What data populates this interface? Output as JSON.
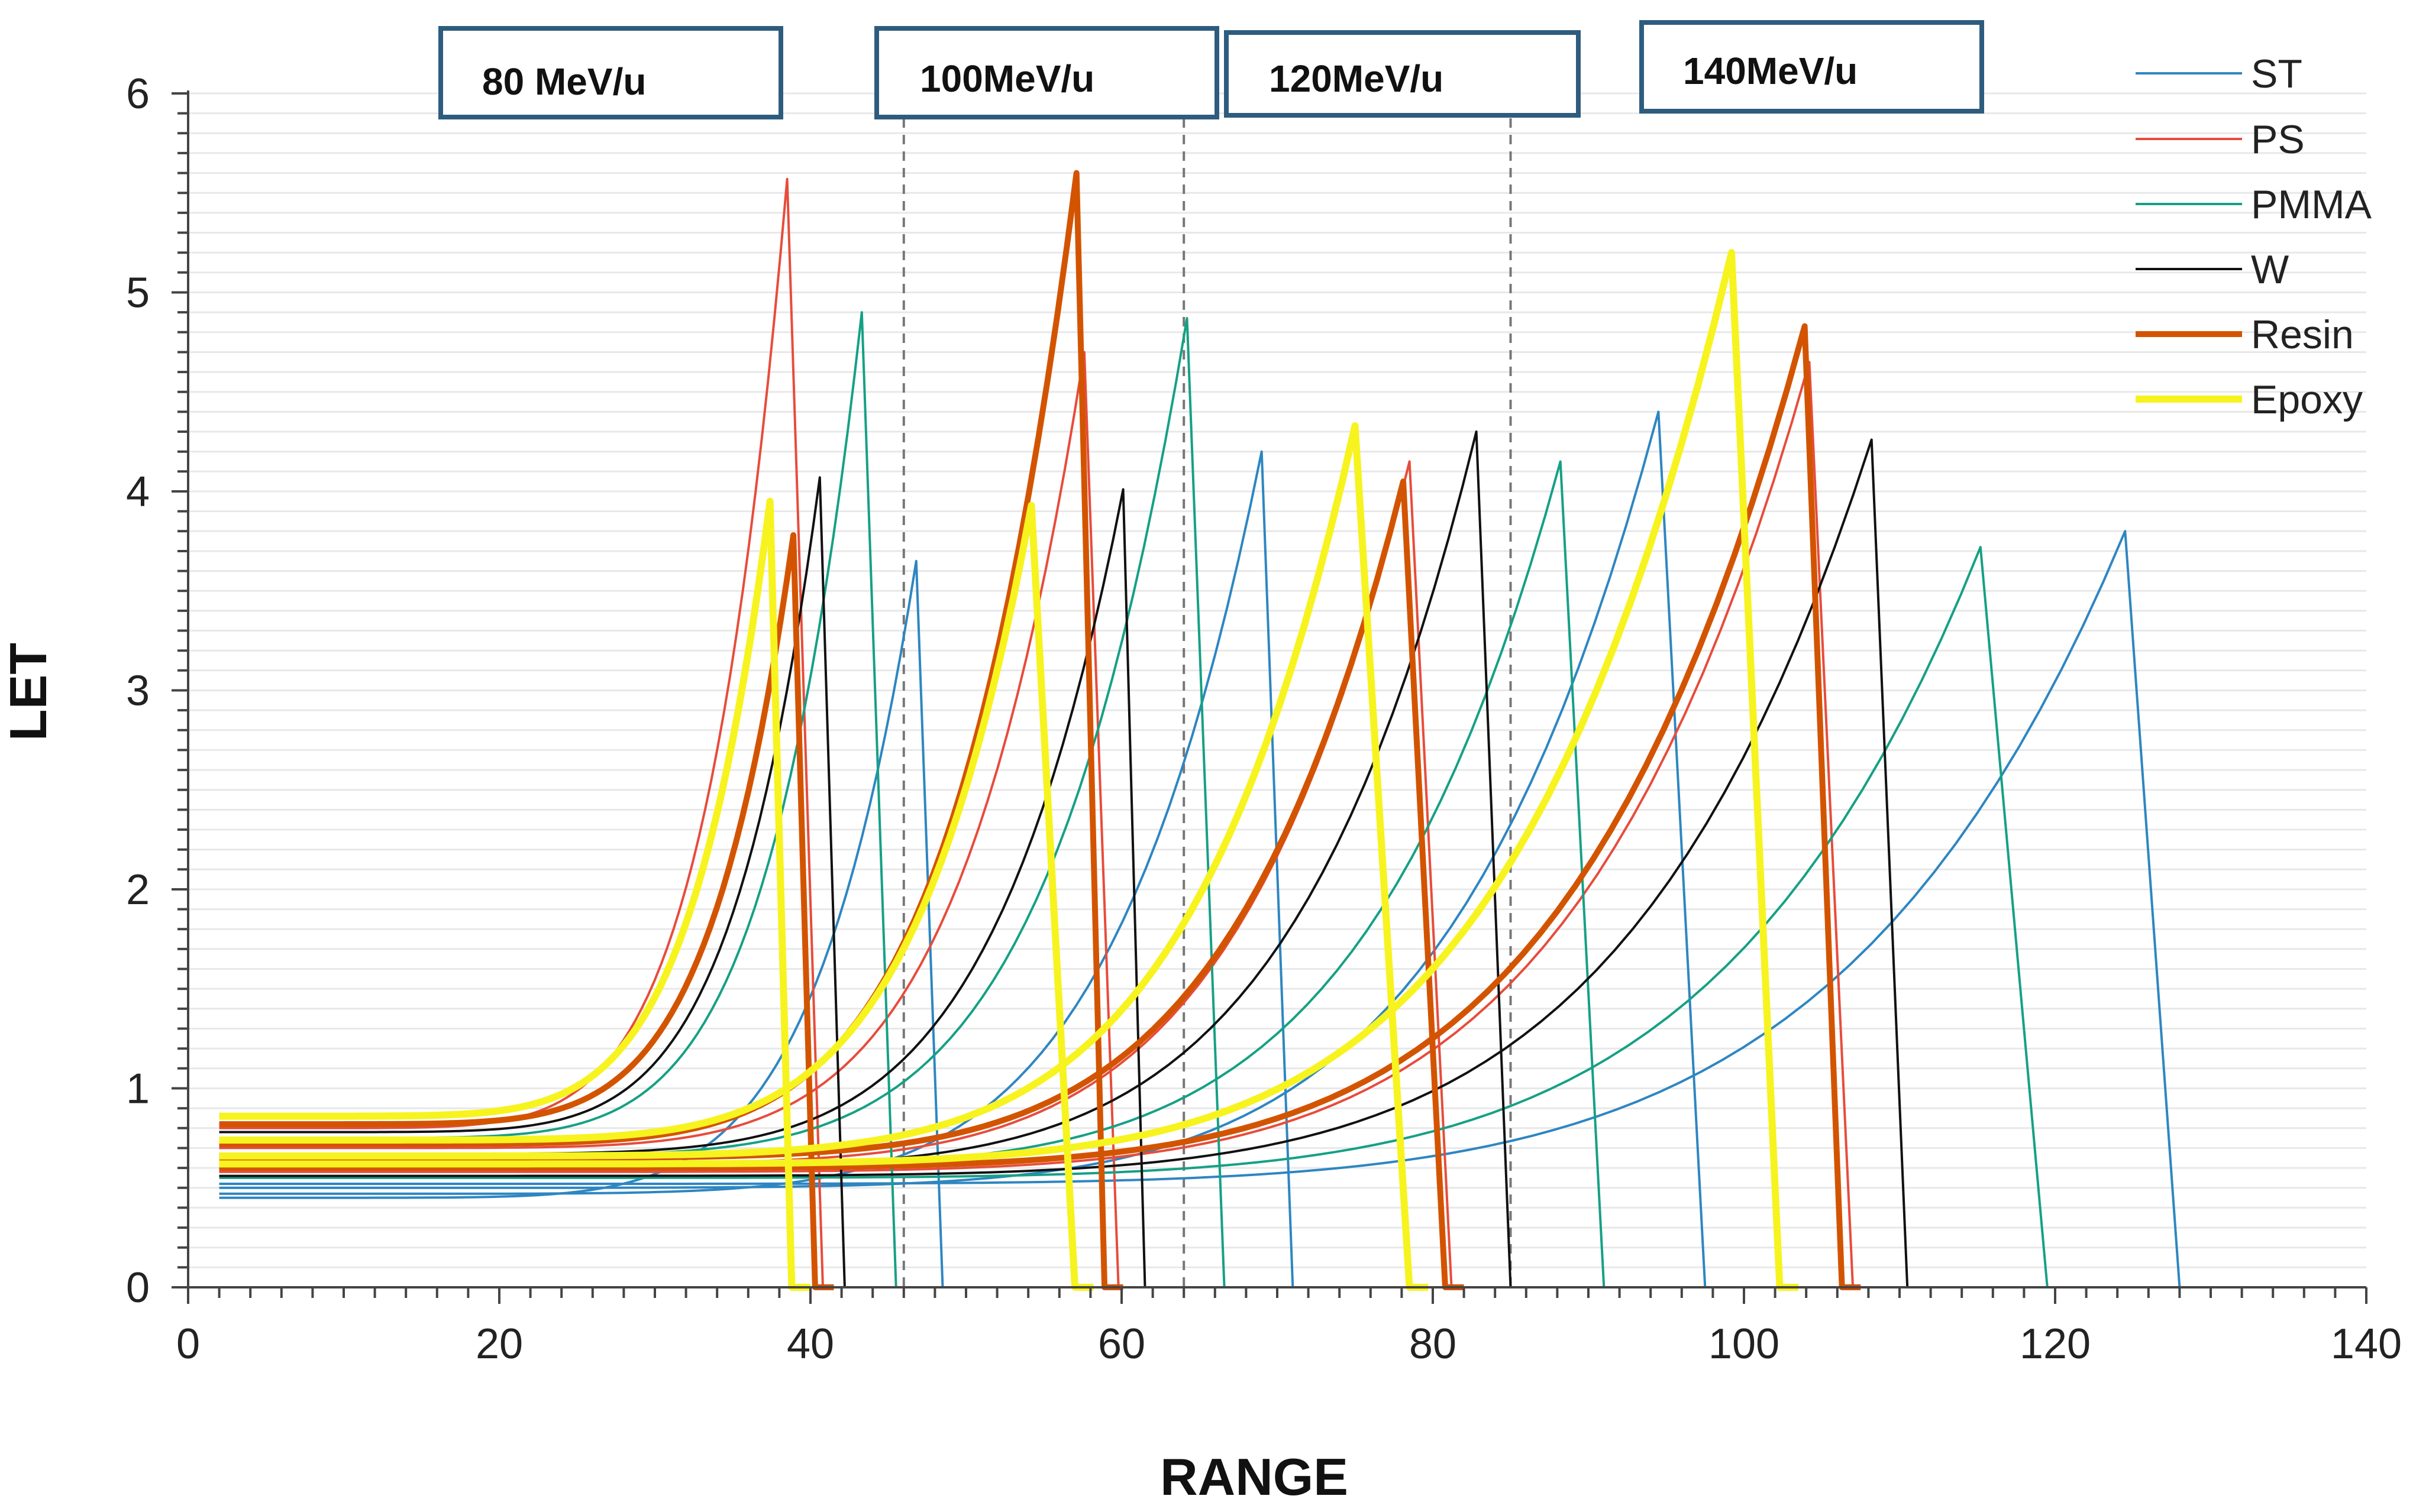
{
  "chart_data": {
    "type": "line",
    "title": "",
    "xlabel": "RANGE",
    "ylabel": "LET",
    "xlim": [
      0,
      140
    ],
    "ylim": [
      0,
      6
    ],
    "xticks": [
      0,
      20,
      40,
      60,
      80,
      100,
      120,
      140
    ],
    "xtick_labels": [
      "0",
      "20",
      "40",
      "60",
      "80",
      "100",
      "120",
      "140"
    ],
    "yticks": [
      0,
      1,
      2,
      3,
      4,
      5,
      6
    ],
    "ytick_labels": [
      "0",
      "1",
      "2",
      "3",
      "4",
      "5",
      "6"
    ],
    "x_minor_step": 2,
    "y_minor_step": 0.1,
    "grid": "horizontal minor",
    "legend_position": "top-right",
    "energy_labels": [
      {
        "text": "80 MeV/u"
      },
      {
        "text": "100MeV/u"
      },
      {
        "text": "120MeV/u"
      },
      {
        "text": "140MeV/u"
      }
    ],
    "energy_divider_x": [
      46,
      64,
      85
    ],
    "series": [
      {
        "name": "ST",
        "color": "#2E86C1",
        "width": 1,
        "curves": [
          {
            "x0": 2,
            "y0": 0.45,
            "peak_x": 46.8,
            "peak_y": 3.65,
            "drop_x": 48.5
          },
          {
            "x0": 2,
            "y0": 0.47,
            "peak_x": 69.0,
            "peak_y": 4.2,
            "drop_x": 71.0
          },
          {
            "x0": 2,
            "y0": 0.5,
            "peak_x": 94.5,
            "peak_y": 4.4,
            "drop_x": 97.5
          },
          {
            "x0": 2,
            "y0": 0.52,
            "peak_x": 124.5,
            "peak_y": 3.8,
            "drop_x": 128.0
          }
        ]
      },
      {
        "name": "PS",
        "color": "#E74C3C",
        "width": 1,
        "curves": [
          {
            "x0": 2,
            "y0": 0.8,
            "peak_x": 38.5,
            "peak_y": 5.57,
            "drop_x": 40.8
          },
          {
            "x0": 2,
            "y0": 0.7,
            "peak_x": 57.6,
            "peak_y": 4.7,
            "drop_x": 59.8
          },
          {
            "x0": 2,
            "y0": 0.62,
            "peak_x": 78.5,
            "peak_y": 4.15,
            "drop_x": 81.2
          },
          {
            "x0": 2,
            "y0": 0.58,
            "peak_x": 104.2,
            "peak_y": 4.65,
            "drop_x": 107.0
          }
        ]
      },
      {
        "name": "PMMA",
        "color": "#16A085",
        "width": 1,
        "curves": [
          {
            "x0": 2,
            "y0": 0.75,
            "peak_x": 43.3,
            "peak_y": 4.9,
            "drop_x": 45.5
          },
          {
            "x0": 2,
            "y0": 0.66,
            "peak_x": 64.2,
            "peak_y": 4.87,
            "drop_x": 66.6
          },
          {
            "x0": 2,
            "y0": 0.6,
            "peak_x": 88.2,
            "peak_y": 4.15,
            "drop_x": 91.0
          },
          {
            "x0": 2,
            "y0": 0.55,
            "peak_x": 115.2,
            "peak_y": 3.72,
            "drop_x": 119.5
          }
        ]
      },
      {
        "name": "W",
        "color": "#111111",
        "width": 1,
        "curves": [
          {
            "x0": 2,
            "y0": 0.78,
            "peak_x": 40.6,
            "peak_y": 4.07,
            "drop_x": 42.2
          },
          {
            "x0": 2,
            "y0": 0.67,
            "peak_x": 60.1,
            "peak_y": 4.01,
            "drop_x": 61.5
          },
          {
            "x0": 2,
            "y0": 0.6,
            "peak_x": 82.8,
            "peak_y": 4.3,
            "drop_x": 85.0
          },
          {
            "x0": 2,
            "y0": 0.56,
            "peak_x": 108.2,
            "peak_y": 4.26,
            "drop_x": 110.5
          }
        ]
      },
      {
        "name": "Resin",
        "color": "#D35400",
        "width": 2.5,
        "curves": [
          {
            "x0": 2,
            "y0": 0.82,
            "peak_x": 38.9,
            "peak_y": 3.78,
            "drop_x": 40.3
          },
          {
            "x0": 2,
            "y0": 0.72,
            "peak_x": 57.1,
            "peak_y": 5.6,
            "drop_x": 58.9
          },
          {
            "x0": 2,
            "y0": 0.65,
            "peak_x": 78.1,
            "peak_y": 4.05,
            "drop_x": 80.8
          },
          {
            "x0": 2,
            "y0": 0.6,
            "peak_x": 103.9,
            "peak_y": 4.83,
            "drop_x": 106.3
          }
        ]
      },
      {
        "name": "Epoxy",
        "color": "#F7F31F",
        "width": 3,
        "curves": [
          {
            "x0": 2,
            "y0": 0.86,
            "peak_x": 37.4,
            "peak_y": 3.95,
            "drop_x": 38.8
          },
          {
            "x0": 2,
            "y0": 0.74,
            "peak_x": 54.2,
            "peak_y": 3.93,
            "drop_x": 57.0
          },
          {
            "x0": 2,
            "y0": 0.66,
            "peak_x": 75.0,
            "peak_y": 4.33,
            "drop_x": 78.5
          },
          {
            "x0": 2,
            "y0": 0.62,
            "peak_x": 99.2,
            "peak_y": 5.2,
            "drop_x": 102.3
          }
        ]
      }
    ]
  }
}
